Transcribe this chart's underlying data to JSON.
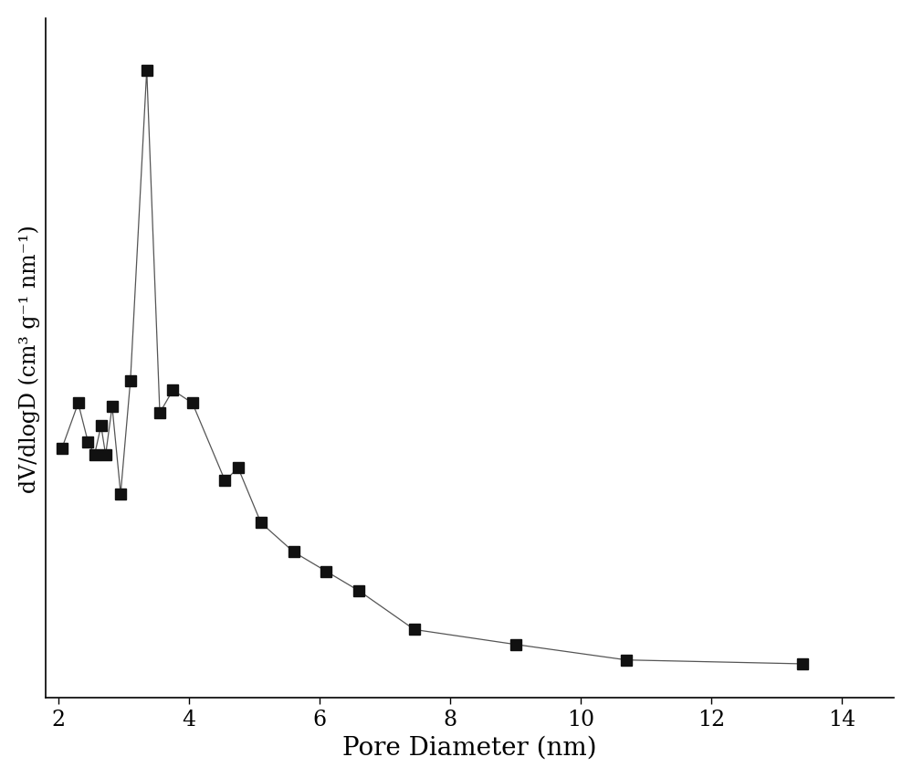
{
  "x": [
    2.05,
    2.3,
    2.45,
    2.55,
    2.65,
    2.72,
    2.82,
    2.95,
    3.1,
    3.35,
    3.55,
    3.75,
    4.05,
    4.55,
    4.75,
    5.1,
    5.6,
    6.1,
    6.6,
    7.45,
    9.0,
    10.7,
    13.4
  ],
  "y": [
    0.385,
    0.455,
    0.395,
    0.375,
    0.42,
    0.375,
    0.45,
    0.315,
    0.49,
    0.97,
    0.44,
    0.475,
    0.455,
    0.335,
    0.355,
    0.27,
    0.225,
    0.195,
    0.165,
    0.105,
    0.082,
    0.058,
    0.052
  ],
  "xlabel": "Pore Diameter (nm)",
  "ylabel": "dV/dlogD (cm³ g⁻¹ nm⁻¹)",
  "xlim": [
    1.8,
    14.8
  ],
  "ylim": [
    0.0,
    1.05
  ],
  "xticks": [
    2,
    4,
    6,
    8,
    10,
    12,
    14
  ],
  "marker": "s",
  "marker_color": "#111111",
  "line_color": "#555555",
  "marker_size": 8,
  "line_width": 0.9,
  "xlabel_fontsize": 20,
  "ylabel_fontsize": 17,
  "tick_fontsize": 17,
  "background_color": "#ffffff",
  "figure_width": 10.0,
  "figure_height": 8.53,
  "dpi": 100
}
